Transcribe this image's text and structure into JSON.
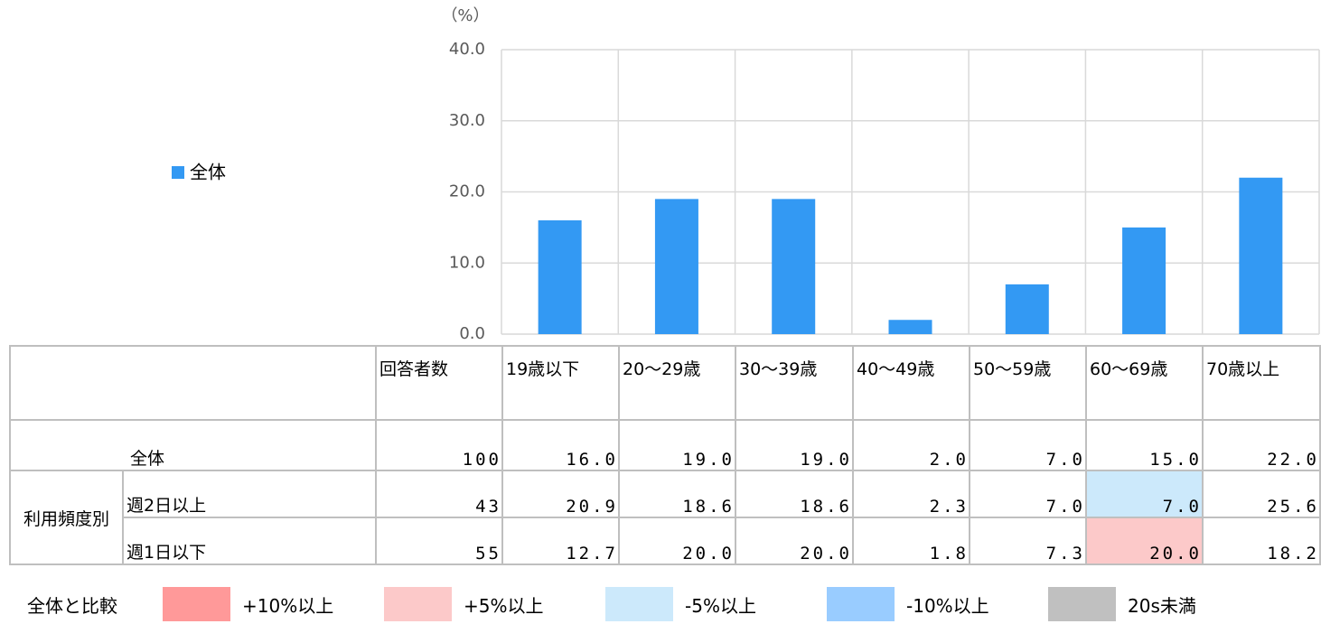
{
  "chart_data": {
    "type": "bar",
    "y_label": "（%）",
    "categories": [
      "19歳以下",
      "20～29歳",
      "30～39歳",
      "40～49歳",
      "50～59歳",
      "60～69歳",
      "70歳以上"
    ],
    "series": [
      {
        "name": "全体",
        "color": "#3399f3",
        "values": [
          16.0,
          19.0,
          19.0,
          2.0,
          7.0,
          15.0,
          22.0
        ]
      }
    ],
    "ylim": [
      0,
      40
    ],
    "yticks": [
      {
        "value": 0,
        "label": "0.0"
      },
      {
        "value": 10,
        "label": "10.0"
      },
      {
        "value": 20,
        "label": "20.0"
      },
      {
        "value": 30,
        "label": "30.0"
      },
      {
        "value": 40,
        "label": "40.0"
      }
    ],
    "grid": true,
    "legend": "left"
  },
  "table": {
    "header": [
      "回答者数",
      "19歳以下",
      "20～29歳",
      "30～39歳",
      "40～49歳",
      "50～59歳",
      "60～69歳",
      "70歳以上"
    ],
    "total": {
      "label": "全体",
      "cells": [
        "100",
        "16.0",
        "19.0",
        "19.0",
        "2.0",
        "7.0",
        "15.0",
        "22.0"
      ]
    },
    "group": "利用頻度別",
    "rows": [
      {
        "label": "週2日以上",
        "cells": [
          "43",
          "20.9",
          "18.6",
          "18.6",
          "2.3",
          "7.0",
          "7.0",
          "25.6"
        ],
        "highlights": [
          {
            "col": 6,
            "legend": 2
          }
        ]
      },
      {
        "label": "週1日以下",
        "cells": [
          "55",
          "12.7",
          "20.0",
          "20.0",
          "1.8",
          "7.3",
          "20.0",
          "18.2"
        ],
        "highlights": [
          {
            "col": 6,
            "legend": 1
          }
        ]
      }
    ]
  },
  "legend": {
    "title": "全体と比較",
    "items": [
      {
        "label": "+10%以上",
        "color": "#ff9999"
      },
      {
        "label": "+5%以上",
        "color": "#fcc9c9"
      },
      {
        "label": "-5%以上",
        "color": "#cce9fb"
      },
      {
        "label": "-10%以上",
        "color": "#99ccff"
      },
      {
        "label": "20s未満",
        "color": "#c0c0c0"
      }
    ]
  }
}
